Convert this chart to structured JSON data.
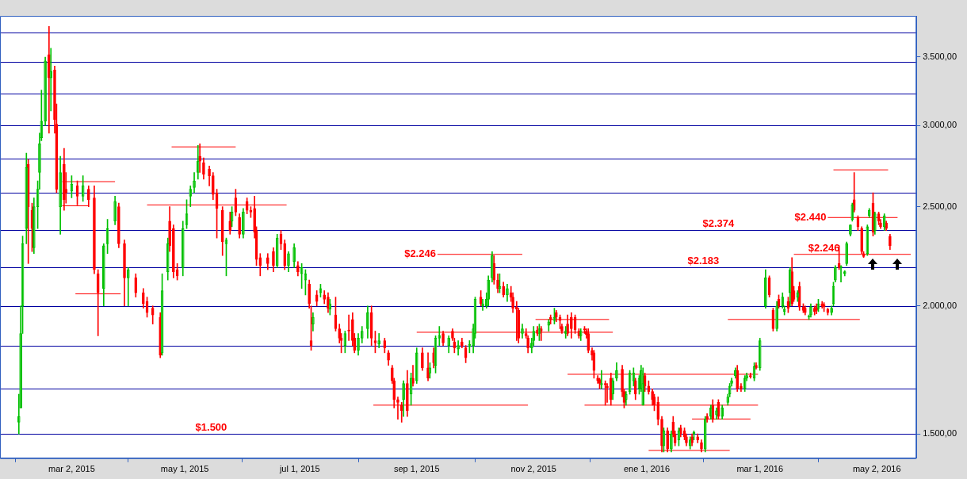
{
  "chart_data": {
    "type": "candlestick",
    "xlim": [
      "2015-01-23",
      "2016-05-23"
    ],
    "xticks": [
      {
        "value": "2015-03-02",
        "label": "mar 2, 2015"
      },
      {
        "value": "2015-05-01",
        "label": "may 1, 2015"
      },
      {
        "value": "2015-07-01",
        "label": "jul 1, 2015"
      },
      {
        "value": "2015-09-01",
        "label": "sep 1, 2015"
      },
      {
        "value": "2015-11-02",
        "label": "nov 2, 2015"
      },
      {
        "value": "2016-01-01",
        "label": "ene 1, 2016"
      },
      {
        "value": "2016-03-01",
        "label": "mar 1, 2016"
      },
      {
        "value": "2016-05-02",
        "label": "may 2, 2016"
      }
    ],
    "log": true,
    "ylim": [
      1420,
      3840
    ],
    "yticks": [
      {
        "value": 1500,
        "label": "1.500,00"
      },
      {
        "value": 2000,
        "label": "2.000,00"
      },
      {
        "value": 2500,
        "label": "2.500,00"
      },
      {
        "value": 3000,
        "label": "3.000,00"
      },
      {
        "value": 3500,
        "label": "3.500,00"
      }
    ],
    "ref_lines": [
      {
        "axis": "y",
        "value": 3698,
        "color": "#0000a0"
      },
      {
        "axis": "y",
        "value": 3463,
        "color": "#0000a0"
      },
      {
        "axis": "y",
        "value": 3225,
        "color": "#0000a0"
      },
      {
        "axis": "y",
        "value": 3000,
        "color": "#0000a0"
      },
      {
        "axis": "y",
        "value": 2788,
        "color": "#0000a0"
      },
      {
        "axis": "y",
        "value": 2578,
        "color": "#0000a0"
      },
      {
        "axis": "y",
        "value": 2374,
        "color": "#0000a0"
      },
      {
        "axis": "y",
        "value": 2183,
        "color": "#0000a0"
      },
      {
        "axis": "y",
        "value": 2000,
        "color": "#0000a0"
      },
      {
        "axis": "y",
        "value": 1827,
        "color": "#0000a0"
      },
      {
        "axis": "y",
        "value": 1660,
        "color": "#0000a0"
      },
      {
        "axis": "y",
        "value": 1500,
        "color": "#0000a0"
      }
    ],
    "annotations": [
      {
        "text": "$2.246",
        "x": "2015-09-12",
        "y": 2246
      },
      {
        "text": "$2.374",
        "x": "2016-02-08",
        "y": 2374
      },
      {
        "text": "$2.183",
        "x": "2016-01-31",
        "y": 2183
      },
      {
        "text": "$1.500",
        "x": "2015-05-15",
        "y": 1500
      },
      {
        "text": "$2.440",
        "x": "2016-04-06",
        "y": 2440
      },
      {
        "text": "$2.246",
        "x": "2016-04-04",
        "y": 2246
      }
    ],
    "series": [
      {
        "type": "line",
        "color": "#ff0000",
        "x": [
          "2015-02-25",
          "2015-03-25"
        ],
        "values": [
          2645,
          2645
        ]
      },
      {
        "type": "line",
        "color": "#ff0000",
        "x": [
          "2015-02-25",
          "2015-03-11"
        ],
        "values": [
          2505,
          2505
        ]
      },
      {
        "type": "line",
        "color": "#ff0000",
        "x": [
          "2015-03-04",
          "2015-03-28"
        ],
        "values": [
          2055,
          2055
        ]
      },
      {
        "type": "line",
        "color": "#ff0000",
        "x": [
          "2015-04-24",
          "2015-05-28"
        ],
        "values": [
          2860,
          2860
        ]
      },
      {
        "type": "line",
        "color": "#ff0000",
        "x": [
          "2015-04-11",
          "2015-06-24"
        ],
        "values": [
          2510,
          2510
        ]
      },
      {
        "type": "line",
        "color": "#ff0000",
        "x": [
          "2015-09-12",
          "2015-10-27"
        ],
        "values": [
          2246,
          2246
        ]
      },
      {
        "type": "line",
        "color": "#ff0000",
        "x": [
          "2015-09-01",
          "2015-12-14"
        ],
        "values": [
          1885,
          1885
        ]
      },
      {
        "type": "line",
        "color": "#ff0000",
        "x": [
          "2015-11-03",
          "2015-12-12"
        ],
        "values": [
          1940,
          1940
        ]
      },
      {
        "type": "line",
        "color": "#ff0000",
        "x": [
          "2015-08-09",
          "2015-10-30"
        ],
        "values": [
          1600,
          1600
        ]
      },
      {
        "type": "line",
        "color": "#ff0000",
        "x": [
          "2015-11-20",
          "2016-02-29"
        ],
        "values": [
          1715,
          1715
        ]
      },
      {
        "type": "line",
        "color": "#ff0000",
        "x": [
          "2015-11-29",
          "2016-02-29"
        ],
        "values": [
          1600,
          1600
        ]
      },
      {
        "type": "line",
        "color": "#ff0000",
        "x": [
          "2016-02-13",
          "2016-04-23"
        ],
        "values": [
          1940,
          1940
        ]
      },
      {
        "type": "line",
        "color": "#ff0000",
        "x": [
          "2016-01-25",
          "2016-02-25"
        ],
        "values": [
          1551,
          1551
        ]
      },
      {
        "type": "line",
        "color": "#ff0000",
        "x": [
          "2016-01-02",
          "2016-02-14"
        ],
        "values": [
          1445,
          1445
        ]
      },
      {
        "type": "line",
        "color": "#ff0000",
        "x": [
          "2016-04-09",
          "2016-05-08"
        ],
        "values": [
          2716,
          2716
        ]
      },
      {
        "type": "line",
        "color": "#ff0000",
        "x": [
          "2016-04-06",
          "2016-05-13"
        ],
        "values": [
          2440,
          2440
        ]
      },
      {
        "type": "line",
        "color": "#ff0000",
        "x": [
          "2016-03-19",
          "2016-05-20"
        ],
        "values": [
          2246,
          2246
        ]
      },
      {
        "type": "candlestick",
        "color": "#00c000",
        "x": [
          "2015-02-02",
          "2015-02-03",
          "2015-02-04",
          "2015-02-06",
          "2015-02-10",
          "2015-02-12",
          "2015-02-13",
          "2015-02-14",
          "2015-02-16",
          "2015-02-19",
          "2015-02-24",
          "2015-03-02",
          "2015-03-08",
          "2015-03-19",
          "2015-03-21",
          "2015-03-25",
          "2015-04-01",
          "2015-04-19",
          "2015-04-22",
          "2015-04-30",
          "2015-05-02",
          "2015-05-04",
          "2015-05-06",
          "2015-05-08",
          "2015-05-23",
          "2015-05-26",
          "2015-06-01",
          "2015-06-19",
          "2015-06-25",
          "2015-06-28",
          "2015-07-02",
          "2015-07-04",
          "2015-07-08",
          "2015-07-12",
          "2015-07-17",
          "2015-07-25",
          "2015-08-01",
          "2015-08-03",
          "2015-08-06",
          "2015-08-12",
          "2015-08-25",
          "2015-08-29",
          "2015-09-01",
          "2015-09-08",
          "2015-09-11",
          "2015-09-13",
          "2015-09-18",
          "2015-09-23",
          "2015-09-29",
          "2015-10-01",
          "2015-10-02",
          "2015-10-06",
          "2015-10-08",
          "2015-10-09",
          "2015-10-11",
          "2015-10-15",
          "2015-10-19",
          "2015-10-27",
          "2015-11-01",
          "2015-11-02",
          "2015-11-05",
          "2015-11-10",
          "2015-11-13",
          "2015-11-19",
          "2015-11-27",
          "2015-12-08",
          "2015-12-14",
          "2015-12-16",
          "2015-12-21",
          "2015-12-23",
          "2015-12-25",
          "2015-12-28",
          "2015-12-29",
          "2015-12-30",
          "2016-01-10",
          "2016-01-14",
          "2016-01-18",
          "2016-01-24",
          "2016-01-26",
          "2016-02-01",
          "2016-02-04",
          "2016-02-07",
          "2016-02-10",
          "2016-02-13",
          "2016-02-14",
          "2016-02-15",
          "2016-02-17",
          "2016-02-22",
          "2016-02-23",
          "2016-02-27",
          "2016-03-01",
          "2016-03-04",
          "2016-03-10",
          "2016-03-13",
          "2016-03-14",
          "2016-03-17",
          "2016-03-21",
          "2016-03-27",
          "2016-03-28",
          "2016-04-01",
          "2016-04-08",
          "2016-04-09",
          "2016-04-10",
          "2016-04-13",
          "2016-04-15",
          "2016-04-16",
          "2016-04-18",
          "2016-04-19",
          "2016-04-27",
          "2016-04-28",
          "2016-05-01",
          "2016-05-06"
        ],
        "ohlc": [
          [
            1540,
            1640,
            1500,
            1560
          ],
          [
            1590,
            2000,
            1590,
            1880
          ],
          [
            2000,
            2340,
            1880,
            2300
          ],
          [
            2380,
            2820,
            2300,
            2730
          ],
          [
            2280,
            2550,
            2250,
            2500
          ],
          [
            2500,
            2650,
            2380,
            2600
          ],
          [
            2700,
            2950,
            2600,
            2880
          ],
          [
            2920,
            3250,
            2900,
            3030
          ],
          [
            3030,
            3500,
            3000,
            3470
          ],
          [
            3340,
            3570,
            3100,
            3390
          ],
          [
            2500,
            2800,
            2350,
            2700
          ],
          [
            2590,
            2680,
            2550,
            2630
          ],
          [
            2560,
            2680,
            2530,
            2620
          ],
          [
            2080,
            2300,
            2000,
            2290
          ],
          [
            2300,
            2430,
            2250,
            2380
          ],
          [
            2420,
            2560,
            2400,
            2530
          ],
          [
            2130,
            2180,
            2000,
            2170
          ],
          [
            1800,
            2150,
            1790,
            2070
          ],
          [
            2160,
            2330,
            2120,
            2300
          ],
          [
            2180,
            2420,
            2140,
            2380
          ],
          [
            2400,
            2540,
            2380,
            2460
          ],
          [
            2560,
            2620,
            2500,
            2600
          ],
          [
            2610,
            2700,
            2580,
            2650
          ],
          [
            2700,
            2870,
            2660,
            2770
          ],
          [
            2300,
            2330,
            2140,
            2320
          ],
          [
            2420,
            2500,
            2390,
            2470
          ],
          [
            2350,
            2490,
            2330,
            2470
          ],
          [
            2190,
            2350,
            2180,
            2330
          ],
          [
            2190,
            2260,
            2160,
            2250
          ],
          [
            2210,
            2300,
            2180,
            2280
          ],
          [
            2150,
            2200,
            2080,
            2180
          ],
          [
            2120,
            2170,
            2050,
            2150
          ],
          [
            1920,
            1970,
            1890,
            1950
          ],
          [
            2060,
            2100,
            2040,
            2080
          ],
          [
            1985,
            2030,
            1960,
            2010
          ],
          [
            1830,
            1890,
            1800,
            1880
          ],
          [
            1810,
            1880,
            1790,
            1860
          ],
          [
            1860,
            1910,
            1840,
            1890
          ],
          [
            1900,
            2000,
            1860,
            1970
          ],
          [
            1835,
            1880,
            1820,
            1850
          ],
          [
            1620,
            1690,
            1560,
            1680
          ],
          [
            1640,
            1720,
            1600,
            1700
          ],
          [
            1690,
            1820,
            1680,
            1800
          ],
          [
            1720,
            1760,
            1700,
            1740
          ],
          [
            1750,
            1870,
            1720,
            1860
          ],
          [
            1860,
            1910,
            1830,
            1870
          ],
          [
            1830,
            1870,
            1800,
            1860
          ],
          [
            1815,
            1850,
            1790,
            1830
          ],
          [
            1825,
            1850,
            1800,
            1835
          ],
          [
            1830,
            1920,
            1800,
            1900
          ],
          [
            1880,
            2040,
            1860,
            2030
          ],
          [
            2000,
            2030,
            1980,
            2010
          ],
          [
            2000,
            2060,
            1990,
            2030
          ],
          [
            2030,
            2140,
            2000,
            2120
          ],
          [
            2130,
            2260,
            2110,
            2240
          ],
          [
            2080,
            2150,
            2060,
            2090
          ],
          [
            2050,
            2100,
            2020,
            2080
          ],
          [
            1880,
            1920,
            1860,
            1900
          ],
          [
            1820,
            1860,
            1800,
            1840
          ],
          [
            1850,
            1910,
            1830,
            1890
          ],
          [
            1880,
            1920,
            1850,
            1900
          ],
          [
            1915,
            1940,
            1890,
            1930
          ],
          [
            1935,
            1990,
            1920,
            1950
          ],
          [
            1880,
            1910,
            1860,
            1890
          ],
          [
            1870,
            1900,
            1850,
            1890
          ],
          [
            1675,
            1730,
            1660,
            1680
          ],
          [
            1640,
            1700,
            1620,
            1690
          ],
          [
            1700,
            1760,
            1690,
            1730
          ],
          [
            1620,
            1650,
            1600,
            1640
          ],
          [
            1650,
            1730,
            1640,
            1720
          ],
          [
            1690,
            1740,
            1670,
            1720
          ],
          [
            1660,
            1710,
            1640,
            1700
          ],
          [
            1660,
            1750,
            1650,
            1730
          ],
          [
            1600,
            1740,
            1600,
            1680
          ],
          [
            1460,
            1520,
            1440,
            1510
          ],
          [
            1450,
            1510,
            1440,
            1500
          ],
          [
            1480,
            1520,
            1460,
            1510
          ],
          [
            1460,
            1490,
            1450,
            1480
          ],
          [
            1500,
            1510,
            1480,
            1505
          ],
          [
            1450,
            1560,
            1440,
            1550
          ],
          [
            1560,
            1600,
            1550,
            1590
          ],
          [
            1565,
            1590,
            1550,
            1580
          ],
          [
            1560,
            1600,
            1550,
            1590
          ],
          [
            1610,
            1640,
            1600,
            1630
          ],
          [
            1640,
            1680,
            1630,
            1670
          ],
          [
            1680,
            1700,
            1670,
            1690
          ],
          [
            1710,
            1740,
            1700,
            1730
          ],
          [
            1660,
            1710,
            1650,
            1700
          ],
          [
            1700,
            1720,
            1690,
            1710
          ],
          [
            1700,
            1760,
            1690,
            1745
          ],
          [
            1740,
            1860,
            1730,
            1850
          ],
          [
            2000,
            2170,
            1990,
            2130
          ],
          [
            1900,
            2020,
            1890,
            2000
          ],
          [
            2000,
            2060,
            1990,
            2040
          ],
          [
            1975,
            2000,
            1960,
            1985
          ],
          [
            2060,
            2180,
            2000,
            2170
          ],
          [
            2040,
            2070,
            2020,
            2060
          ],
          [
            1950,
            1960,
            1940,
            1955
          ],
          [
            1960,
            2010,
            1950,
            1995
          ],
          [
            1990,
            2030,
            1975,
            2010
          ],
          [
            1970,
            2000,
            1960,
            1990
          ],
          [
            2010,
            2110,
            2000,
            2090
          ],
          [
            2120,
            2190,
            2110,
            2180
          ],
          [
            2180,
            2190,
            2110,
            2185
          ],
          [
            2150,
            2165,
            2140,
            2160
          ],
          [
            2200,
            2310,
            2190,
            2300
          ],
          [
            2350,
            2400,
            2340,
            2400
          ],
          [
            2430,
            2520,
            2420,
            2510
          ],
          [
            2250,
            2400,
            2240,
            2390
          ],
          [
            2450,
            2490,
            2440,
            2480
          ],
          [
            2370,
            2470,
            2350,
            2460
          ],
          [
            2390,
            2460,
            2370,
            2450
          ]
        ]
      },
      {
        "type": "candlestick",
        "color": "#ff0000",
        "x": [
          "2015-02-07",
          "2015-02-09",
          "2015-02-18",
          "2015-02-21",
          "2015-02-22",
          "2015-02-26",
          "2015-02-27",
          "2015-03-05",
          "2015-03-11",
          "2015-03-14",
          "2015-03-16",
          "2015-03-27",
          "2015-03-30",
          "2015-04-05",
          "2015-04-09",
          "2015-04-11",
          "2015-04-14",
          "2015-04-18",
          "2015-04-23",
          "2015-04-25",
          "2015-04-27",
          "2015-05-09",
          "2015-05-11",
          "2015-05-14",
          "2015-05-16",
          "2015-05-18",
          "2015-05-21",
          "2015-05-25",
          "2015-05-28",
          "2015-05-30",
          "2015-06-03",
          "2015-06-05",
          "2015-06-07",
          "2015-06-08",
          "2015-06-10",
          "2015-06-14",
          "2015-06-17",
          "2015-06-21",
          "2015-06-23",
          "2015-06-30",
          "2015-07-06",
          "2015-07-07",
          "2015-07-10",
          "2015-07-14",
          "2015-07-16",
          "2015-07-20",
          "2015-07-22",
          "2015-07-23",
          "2015-07-27",
          "2015-07-29",
          "2015-07-30",
          "2015-08-08",
          "2015-08-10",
          "2015-08-15",
          "2015-08-17",
          "2015-08-19",
          "2015-08-20",
          "2015-08-22",
          "2015-08-24",
          "2015-08-27",
          "2015-08-30",
          "2015-09-04",
          "2015-09-07",
          "2015-09-10",
          "2015-09-15",
          "2015-09-20",
          "2015-09-21",
          "2015-09-25",
          "2015-09-27",
          "2015-10-05",
          "2015-10-12",
          "2015-10-14",
          "2015-10-17",
          "2015-10-21",
          "2015-10-22",
          "2015-10-24",
          "2015-10-25",
          "2015-10-29",
          "2015-10-30",
          "2015-11-04",
          "2015-11-06",
          "2015-11-11",
          "2015-11-14",
          "2015-11-16",
          "2015-11-17",
          "2015-11-20",
          "2015-11-22",
          "2015-11-24",
          "2015-11-26",
          "2015-11-29",
          "2015-11-30",
          "2015-12-01",
          "2015-12-03",
          "2015-12-04",
          "2015-12-06",
          "2015-12-07",
          "2015-12-10",
          "2015-12-11",
          "2015-12-13",
          "2015-12-19",
          "2015-12-20",
          "2015-12-26",
          "2015-12-31",
          "2016-01-02",
          "2016-01-04",
          "2016-01-05",
          "2016-01-07",
          "2016-01-09",
          "2016-01-12",
          "2016-01-15",
          "2016-01-16",
          "2016-01-19",
          "2016-01-21",
          "2016-01-22",
          "2016-01-25",
          "2016-01-28",
          "2016-01-30",
          "2016-02-02",
          "2016-02-05",
          "2016-02-08",
          "2016-02-18",
          "2016-02-20",
          "2016-02-25",
          "2016-02-28",
          "2016-03-06",
          "2016-03-08",
          "2016-03-11",
          "2016-03-16",
          "2016-03-18",
          "2016-03-19",
          "2016-03-22",
          "2016-03-24",
          "2016-03-25",
          "2016-03-30",
          "2016-03-31",
          "2016-04-03",
          "2016-04-04",
          "2016-04-06",
          "2016-04-12",
          "2016-04-20",
          "2016-04-22",
          "2016-04-24",
          "2016-04-25",
          "2016-04-30",
          "2016-05-03",
          "2016-05-04",
          "2016-05-07",
          "2016-05-09"
        ],
        "ohlc": [
          [
            2750,
            2780,
            2200,
            2500
          ],
          [
            2480,
            2520,
            2260,
            2380
          ],
          [
            3520,
            3750,
            2950,
            3340
          ],
          [
            3400,
            3430,
            2950,
            3040
          ],
          [
            3010,
            3150,
            2580,
            2600
          ],
          [
            2750,
            2850,
            2480,
            2540
          ],
          [
            2600,
            2700,
            2520,
            2580
          ],
          [
            2620,
            2650,
            2510,
            2560
          ],
          [
            2600,
            2620,
            2500,
            2540
          ],
          [
            2550,
            2620,
            2150,
            2170
          ],
          [
            2150,
            2170,
            1870,
            2060
          ],
          [
            2500,
            2520,
            2280,
            2300
          ],
          [
            2300,
            2320,
            2000,
            2130
          ],
          [
            2130,
            2150,
            2040,
            2060
          ],
          [
            2060,
            2080,
            1990,
            2010
          ],
          [
            2020,
            2040,
            1950,
            1970
          ],
          [
            1990,
            2000,
            1920,
            1960
          ],
          [
            1950,
            1970,
            1780,
            1790
          ],
          [
            2420,
            2500,
            2260,
            2290
          ],
          [
            2380,
            2400,
            2130,
            2160
          ],
          [
            2170,
            2200,
            2120,
            2140
          ],
          [
            2800,
            2880,
            2700,
            2770
          ],
          [
            2760,
            2790,
            2660,
            2690
          ],
          [
            2720,
            2740,
            2620,
            2680
          ],
          [
            2680,
            2700,
            2540,
            2570
          ],
          [
            2580,
            2600,
            2330,
            2490
          ],
          [
            2480,
            2500,
            2240,
            2310
          ],
          [
            2420,
            2470,
            2350,
            2370
          ],
          [
            2550,
            2600,
            2450,
            2470
          ],
          [
            2440,
            2460,
            2330,
            2350
          ],
          [
            2530,
            2550,
            2460,
            2480
          ],
          [
            2480,
            2500,
            2440,
            2470
          ],
          [
            2490,
            2560,
            2330,
            2360
          ],
          [
            2370,
            2390,
            2190,
            2220
          ],
          [
            2230,
            2250,
            2140,
            2190
          ],
          [
            2230,
            2250,
            2170,
            2200
          ],
          [
            2260,
            2280,
            2160,
            2190
          ],
          [
            2350,
            2370,
            2270,
            2300
          ],
          [
            2300,
            2320,
            2170,
            2190
          ],
          [
            2190,
            2210,
            2140,
            2160
          ],
          [
            2100,
            2120,
            1990,
            2010
          ],
          [
            1850,
            2000,
            1810,
            1830
          ],
          [
            2050,
            2070,
            2000,
            2020
          ],
          [
            2050,
            2070,
            2010,
            2030
          ],
          [
            2040,
            2060,
            1970,
            1990
          ],
          [
            1960,
            2040,
            1890,
            1900
          ],
          [
            1900,
            1920,
            1840,
            1860
          ],
          [
            1860,
            1880,
            1800,
            1850
          ],
          [
            1895,
            1960,
            1850,
            1890
          ],
          [
            1940,
            1970,
            1830,
            1850
          ],
          [
            1860,
            1880,
            1800,
            1810
          ],
          [
            1970,
            2000,
            1830,
            1860
          ],
          [
            1850,
            1890,
            1800,
            1840
          ],
          [
            1850,
            1860,
            1800,
            1820
          ],
          [
            1800,
            1810,
            1750,
            1770
          ],
          [
            1740,
            1750,
            1680,
            1690
          ],
          [
            1690,
            1700,
            1590,
            1620
          ],
          [
            1620,
            1630,
            1550,
            1610
          ],
          [
            1600,
            1610,
            1540,
            1580
          ],
          [
            1680,
            1730,
            1560,
            1580
          ],
          [
            1700,
            1750,
            1670,
            1680
          ],
          [
            1800,
            1820,
            1730,
            1740
          ],
          [
            1740,
            1800,
            1690,
            1700
          ],
          [
            1800,
            1820,
            1740,
            1760
          ],
          [
            1880,
            1890,
            1830,
            1840
          ],
          [
            1890,
            1900,
            1850,
            1860
          ],
          [
            1845,
            1860,
            1800,
            1820
          ],
          [
            1845,
            1860,
            1820,
            1830
          ],
          [
            1820,
            1830,
            1760,
            1780
          ],
          [
            2040,
            2070,
            2000,
            2010
          ],
          [
            2200,
            2240,
            2100,
            2120
          ],
          [
            2120,
            2150,
            2060,
            2080
          ],
          [
            2090,
            2110,
            2040,
            2050
          ],
          [
            2060,
            2090,
            2020,
            2040
          ],
          [
            2040,
            2060,
            1970,
            1990
          ],
          [
            1995,
            2020,
            1850,
            1985
          ],
          [
            1980,
            1990,
            1840,
            1860
          ],
          [
            1880,
            1900,
            1860,
            1870
          ],
          [
            1860,
            1870,
            1800,
            1820
          ],
          [
            1895,
            1910,
            1870,
            1880
          ],
          [
            1900,
            1910,
            1850,
            1890
          ],
          [
            1950,
            1960,
            1920,
            1940
          ],
          [
            1970,
            1980,
            1930,
            1950
          ],
          [
            1950,
            1960,
            1900,
            1935
          ],
          [
            1910,
            1920,
            1880,
            1890
          ],
          [
            1920,
            1960,
            1870,
            1880
          ],
          [
            1950,
            1970,
            1860,
            1900
          ],
          [
            1950,
            1960,
            1880,
            1895
          ],
          [
            1890,
            1900,
            1860,
            1870
          ],
          [
            1900,
            1910,
            1880,
            1895
          ],
          [
            1890,
            1900,
            1860,
            1875
          ],
          [
            1880,
            1900,
            1800,
            1810
          ],
          [
            1810,
            1820,
            1770,
            1790
          ],
          [
            1800,
            1810,
            1700,
            1730
          ],
          [
            1700,
            1710,
            1680,
            1690
          ],
          [
            1695,
            1700,
            1660,
            1680
          ],
          [
            1680,
            1690,
            1600,
            1675
          ],
          [
            1670,
            1680,
            1610,
            1665
          ],
          [
            1700,
            1720,
            1600,
            1620
          ],
          [
            1735,
            1750,
            1630,
            1650
          ],
          [
            1650,
            1660,
            1590,
            1610
          ],
          [
            1690,
            1700,
            1620,
            1640
          ],
          [
            1710,
            1720,
            1650,
            1670
          ],
          [
            1670,
            1690,
            1640,
            1650
          ],
          [
            1650,
            1660,
            1600,
            1620
          ],
          [
            1630,
            1640,
            1580,
            1600
          ],
          [
            1610,
            1630,
            1530,
            1550
          ],
          [
            1550,
            1560,
            1440,
            1460
          ],
          [
            1510,
            1520,
            1440,
            1450
          ],
          [
            1540,
            1560,
            1490,
            1500
          ],
          [
            1500,
            1510,
            1460,
            1470
          ],
          [
            1520,
            1530,
            1490,
            1500
          ],
          [
            1510,
            1520,
            1480,
            1490
          ],
          [
            1490,
            1500,
            1460,
            1470
          ],
          [
            1490,
            1500,
            1460,
            1470
          ],
          [
            1490,
            1500,
            1470,
            1480
          ],
          [
            1470,
            1480,
            1440,
            1450
          ],
          [
            1560,
            1570,
            1540,
            1550
          ],
          [
            1600,
            1620,
            1540,
            1550
          ],
          [
            1610,
            1620,
            1550,
            1560
          ],
          [
            1730,
            1750,
            1650,
            1660
          ],
          [
            1670,
            1680,
            1650,
            1660
          ],
          [
            1710,
            1720,
            1700,
            1705
          ],
          [
            1750,
            1760,
            1735,
            1740
          ],
          [
            2130,
            2140,
            2040,
            2050
          ],
          [
            1980,
            1990,
            1890,
            1900
          ],
          [
            2030,
            2050,
            1990,
            2000
          ],
          [
            2020,
            2040,
            1970,
            1990
          ],
          [
            2160,
            2230,
            2000,
            2010
          ],
          [
            2070,
            2090,
            2020,
            2030
          ],
          [
            2090,
            2110,
            1980,
            1995
          ],
          [
            1995,
            2010,
            1970,
            1980
          ],
          [
            1990,
            2000,
            1960,
            1970
          ],
          [
            1990,
            2000,
            1960,
            1975
          ],
          [
            1995,
            2010,
            1965,
            1980
          ],
          [
            2010,
            2020,
            1990,
            2000
          ],
          [
            2005,
            2015,
            1975,
            1995
          ],
          [
            1985,
            1990,
            1960,
            1970
          ],
          [
            2200,
            2290,
            2170,
            2180
          ],
          [
            2540,
            2700,
            2470,
            2480
          ],
          [
            2440,
            2450,
            2370,
            2390
          ],
          [
            2380,
            2390,
            2250,
            2260
          ],
          [
            2250,
            2260,
            2230,
            2235
          ],
          [
            2520,
            2580,
            2340,
            2360
          ],
          [
            2460,
            2470,
            2400,
            2420
          ],
          [
            2410,
            2430,
            2380,
            2390
          ],
          [
            2410,
            2420,
            2370,
            2380
          ],
          [
            2340,
            2350,
            2270,
            2290
          ]
        ]
      }
    ]
  }
}
